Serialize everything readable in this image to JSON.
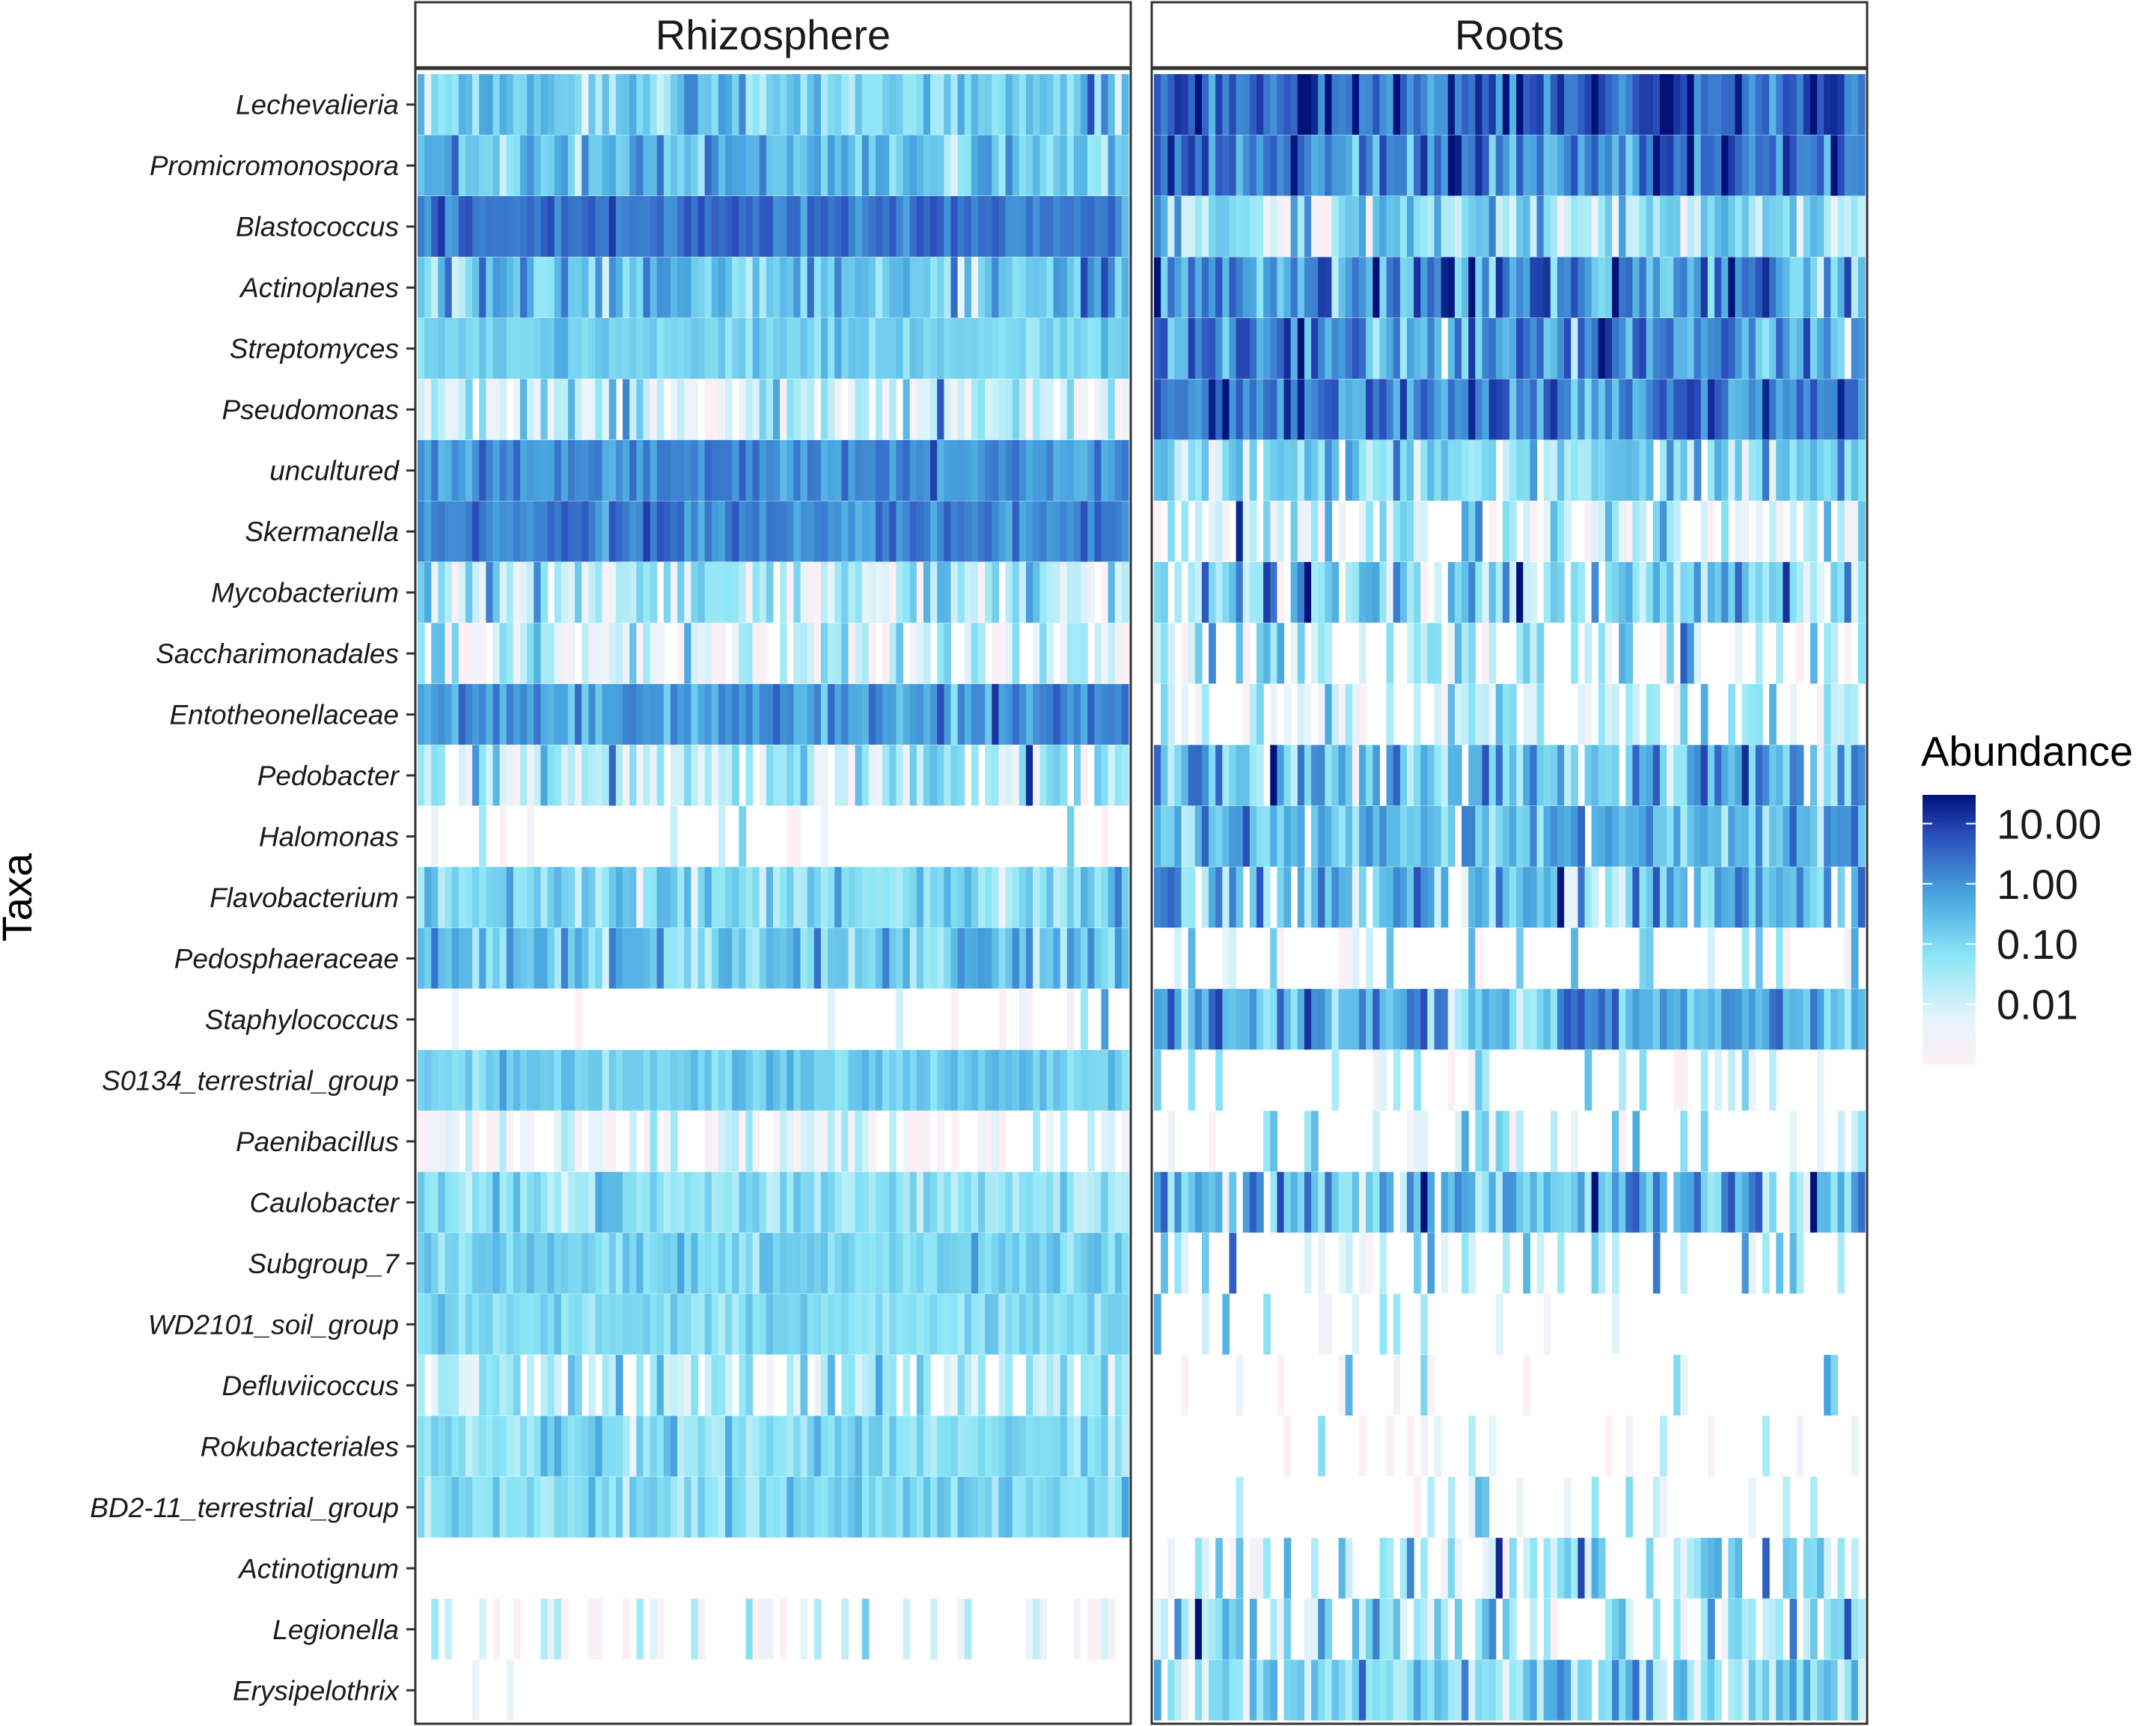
{
  "chart_data": {
    "type": "heatmap",
    "title": "",
    "ylabel": "Taxa",
    "xlabel": "",
    "facets": [
      "Rhizosphere",
      "Roots"
    ],
    "taxa": [
      "Lechevalieria",
      "Promicromonospora",
      "Blastococcus",
      "Actinoplanes",
      "Streptomyces",
      "Pseudomonas",
      "uncultured",
      "Skermanella",
      "Mycobacterium",
      "Saccharimonadales",
      "Entotheonellaceae",
      "Pedobacter",
      "Halomonas",
      "Flavobacterium",
      "Pedosphaeraceae",
      "Staphylococcus",
      "S0134_terrestrial_group",
      "Paenibacillus",
      "Caulobacter",
      "Subgroup_7",
      "WD2101_soil_group",
      "Defluviicoccus",
      "Rokubacteriales",
      "BD2-11_terrestrial_group",
      "Actinotignum",
      "Legionella",
      "Erysipelothrix"
    ],
    "samples_per_facet": 104,
    "color_scale": {
      "type": "log10",
      "min": 0.001,
      "max": 30,
      "zero_color": "#ffffff",
      "stops": [
        {
          "value": 0.001,
          "color": "#fdf0f5"
        },
        {
          "value": 0.01,
          "color": "#e6f4fa"
        },
        {
          "value": 0.1,
          "color": "#8ce6f6"
        },
        {
          "value": 1,
          "color": "#4aa8e0"
        },
        {
          "value": 10,
          "color": "#2a4fbc"
        },
        {
          "value": 30,
          "color": "#00127a"
        }
      ]
    },
    "typical_abundance": {
      "Rhizosphere": [
        0.2,
        0.4,
        4.0,
        0.35,
        0.2,
        0.03,
        2.0,
        2.5,
        0.03,
        0.02,
        1.5,
        0.05,
        0.01,
        0.15,
        0.35,
        0.01,
        0.25,
        0.004,
        0.1,
        0.2,
        0.12,
        0.06,
        0.12,
        0.15,
        0,
        0.01,
        0.01
      ],
      "Roots": [
        6.0,
        3.0,
        0.08,
        1.5,
        2.0,
        3.0,
        0.15,
        0.03,
        0.2,
        0.05,
        0.03,
        0.4,
        0.5,
        0.4,
        0.02,
        0.6,
        0.02,
        0.02,
        0.4,
        0.04,
        0.03,
        0.04,
        0.02,
        0.02,
        0.08,
        0.08,
        0.15
      ]
    },
    "sample_variation": {
      "Rhizosphere": [
        0.5,
        0.5,
        0.3,
        0.6,
        0.25,
        0.9,
        0.3,
        0.3,
        0.8,
        0.8,
        0.4,
        0.8,
        1.0,
        0.5,
        0.6,
        1.0,
        0.3,
        0.8,
        0.4,
        0.3,
        0.3,
        0.6,
        0.4,
        0.4,
        0,
        0.8,
        0.8
      ],
      "Roots": [
        0.6,
        0.6,
        0.9,
        0.8,
        0.8,
        0.6,
        0.7,
        0.9,
        0.8,
        0.9,
        0.8,
        0.8,
        0.6,
        0.7,
        0.9,
        0.7,
        0.9,
        1.0,
        0.7,
        0.9,
        0.9,
        1.0,
        0.9,
        0.9,
        0.9,
        0.9,
        0.7
      ]
    },
    "fraction_present": {
      "Rhizosphere": [
        1.0,
        1.0,
        1.0,
        1.0,
        1.0,
        0.85,
        1.0,
        1.0,
        0.95,
        0.8,
        1.0,
        0.9,
        0.15,
        1.0,
        1.0,
        0.1,
        1.0,
        0.7,
        1.0,
        1.0,
        1.0,
        0.8,
        1.0,
        1.0,
        0.0,
        0.35,
        0.05
      ],
      "Roots": [
        1.0,
        1.0,
        1.0,
        1.0,
        0.98,
        1.0,
        0.95,
        0.6,
        0.9,
        0.55,
        0.6,
        0.9,
        0.95,
        0.9,
        0.3,
        1.0,
        0.3,
        0.3,
        0.9,
        0.3,
        0.15,
        0.12,
        0.12,
        0.15,
        0.55,
        0.6,
        0.95
      ]
    },
    "legend": {
      "title": "Abundance",
      "tick_values": [
        10,
        1,
        0.1,
        0.01
      ],
      "tick_labels": [
        "10.00",
        "1.00",
        "0.10",
        "0.01"
      ]
    }
  }
}
